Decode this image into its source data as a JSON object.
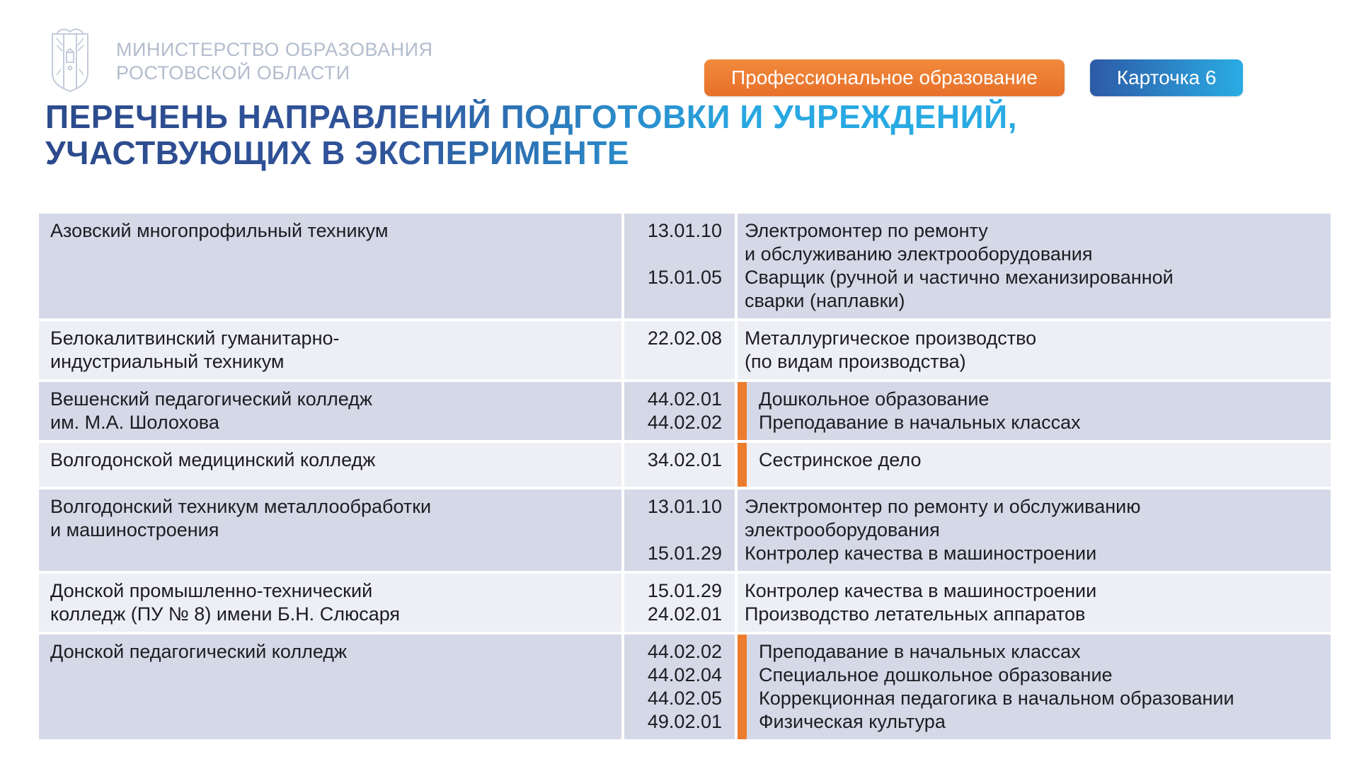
{
  "header": {
    "ministry_line1": "МИНИСТЕРСТВО ОБРАЗОВАНИЯ",
    "ministry_line2": "РОСТОВСКОЙ ОБЛАСТИ",
    "category_badge": "Профессиональное образование",
    "card_badge": "Карточка 6",
    "logo_icon": "coat-of-arms-icon"
  },
  "title": {
    "line1": "ПЕРЕЧЕНЬ НАПРАВЛЕНИЙ ПОДГОТОВКИ И УЧРЕЖДЕНИЙ,",
    "line2": "УЧАСТВУЮЩИХ В ЭКСПЕРИМЕНТЕ"
  },
  "colors": {
    "accent_orange": "#ed7d2e",
    "badge_orange_top": "#f18a3c",
    "badge_orange_bottom": "#e8702a",
    "card_blue_left": "#2d5aa6",
    "card_blue_right": "#2aace4",
    "title_dark_blue": "#2c4a8c",
    "title_light_blue": "#28a7e1",
    "row_dark": "#d5d8e6",
    "row_light": "#edeff5",
    "ministry_text": "#b3bccd"
  },
  "table": {
    "rows": [
      {
        "institution": "Азовский многопрофильный техникум",
        "highlight": false,
        "entries": [
          {
            "code": "13.01.10",
            "program": "Электромонтер по ремонту\nи обслуживанию электрооборудования"
          },
          {
            "code": "15.01.05",
            "program": "Сварщик (ручной и частично механизированной\nсварки (наплавки)"
          }
        ]
      },
      {
        "institution": "Белокалитвинский гуманитарно-\nиндустриальный техникум",
        "highlight": false,
        "entries": [
          {
            "code": "22.02.08",
            "program": "Металлургическое производство\n(по видам производства)"
          }
        ]
      },
      {
        "institution": "Вешенский педагогический колледж\nим. М.А. Шолохова",
        "highlight": true,
        "entries": [
          {
            "code": "44.02.01",
            "program": "Дошкольное образование"
          },
          {
            "code": "44.02.02",
            "program": "Преподавание в начальных классах"
          }
        ]
      },
      {
        "institution": "Волгодонской медицинский колледж",
        "highlight": true,
        "entries": [
          {
            "code": "34.02.01",
            "program": "Сестринское дело"
          }
        ]
      },
      {
        "institution": "Волгодонский техникум металлообработки\nи машиностроения",
        "highlight": false,
        "entries": [
          {
            "code": "13.01.10",
            "program": "Электромонтер по ремонту и обслуживанию\nэлектрооборудования"
          },
          {
            "code": "15.01.29",
            "program": "Контролер качества в машиностроении"
          }
        ]
      },
      {
        "institution": "Донской промышленно-технический\nколледж (ПУ № 8) имени Б.Н. Слюсаря",
        "highlight": false,
        "entries": [
          {
            "code": "15.01.29",
            "program": "Контролер качества в машиностроении"
          },
          {
            "code": "24.02.01",
            "program": "Производство летательных аппаратов"
          }
        ]
      },
      {
        "institution": "Донской педагогический колледж",
        "highlight": true,
        "entries": [
          {
            "code": "44.02.02",
            "program": "Преподавание в начальных классах"
          },
          {
            "code": "44.02.04",
            "program": "Специальное дошкольное образование"
          },
          {
            "code": "44.02.05",
            "program": "Коррекционная педагогика в начальном образовании"
          },
          {
            "code": "49.02.01",
            "program": "Физическая культура"
          }
        ]
      }
    ]
  }
}
